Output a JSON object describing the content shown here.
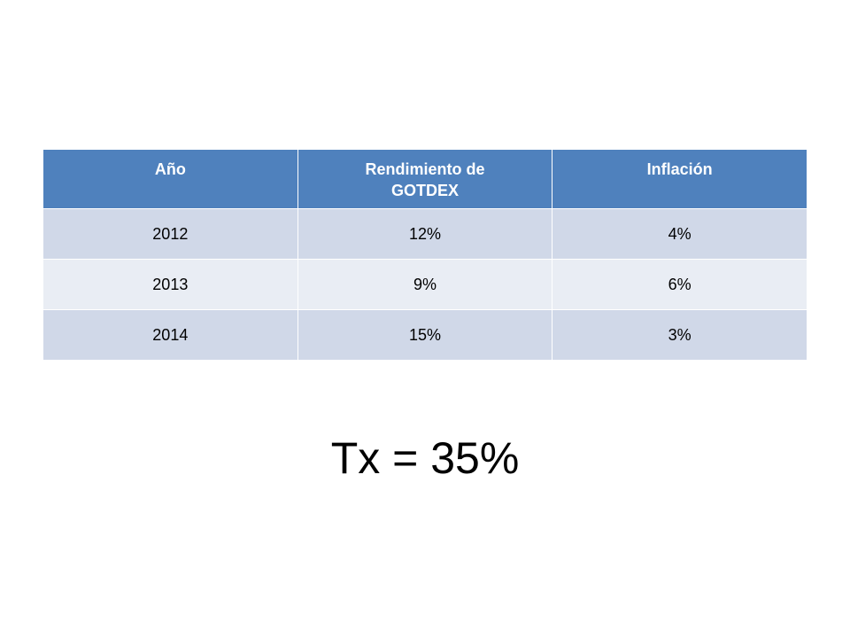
{
  "table": {
    "header": [
      "Año",
      "Rendimiento de GOTDEX",
      "Inflación"
    ],
    "rows": [
      [
        "2012",
        "12%",
        "4%"
      ],
      [
        "2013",
        "9%",
        "6%"
      ],
      [
        "2014",
        "15%",
        "3%"
      ]
    ]
  },
  "formula": "Tx = 35%"
}
